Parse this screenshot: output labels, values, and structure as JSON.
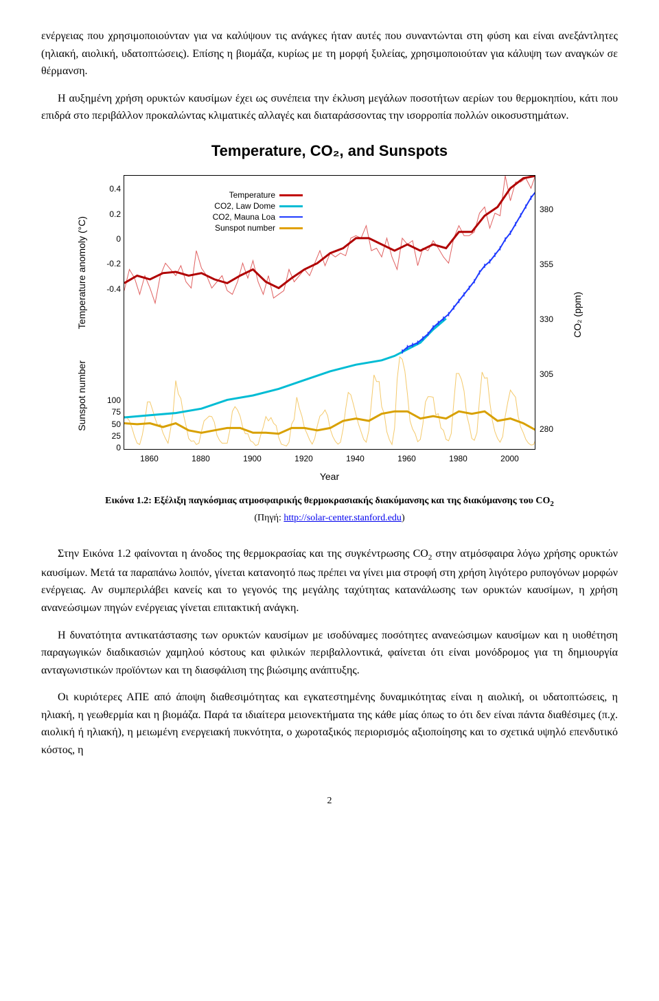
{
  "paragraphs": {
    "p1": "ενέργειας που χρησιμοποιούνταν για να καλύψουν τις ανάγκες ήταν αυτές που συναντώνται στη φύση και είναι ανεξάντλητες (ηλιακή, αιολική, υδατοπτώσεις). Επίσης η βιομάζα, κυρίως με τη μορφή ξυλείας, χρησιμοποιούταν για κάλυψη των αναγκών σε θέρμανση.",
    "p2": "Η αυξημένη χρήση ορυκτών καυσίμων έχει ως συνέπεια την έκλυση μεγάλων ποσοτήτων αερίων του θερμοκηπίου, κάτι που επιδρά στο περιβάλλον προκαλώντας κλιματικές αλλαγές και διαταράσσοντας την ισορροπία πολλών οικοσυστημάτων.",
    "p3a": "Στην Εικόνα 1.2 φαίνονται η άνοδος της θερμοκρασίας και της συγκέντρωσης CO",
    "p3b": " στην ατμόσφαιρα λόγω χρήσης ορυκτών καυσίμων. Μετά τα παραπάνω λοιπόν, γίνεται κατανοητό πως πρέπει να γίνει μια στροφή στη χρήση λιγότερο ρυπογόνων μορφών ενέργειας. Αν συμπεριλάβει κανείς και το γεγονός της μεγάλης ταχύτητας κατανάλωσης των ορυκτών καυσίμων, η χρήση ανανεώσιμων πηγών ενέργειας γίνεται επιτακτική ανάγκη.",
    "p4": "Η δυνατότητα αντικατάστασης των ορυκτών καυσίμων με ισοδύναμες ποσότητες ανανεώσιμων καυσίμων και η υιοθέτηση παραγωγικών διαδικασιών χαμηλού κόστους και φιλικών περιβαλλοντικά, φαίνεται ότι είναι μονόδρομος για τη δημιουργία ανταγωνιστικών προϊόντων και τη διασφάλιση της βιώσιμης ανάπτυξης.",
    "p5": "Οι κυριότερες ΑΠΕ από άποψη διαθεσιμότητας και εγκατεστημένης δυναμικότητας είναι η αιολική, οι υδατοπτώσεις, η ηλιακή, η γεωθερμία και η βιομάζα. Παρά τα ιδιαίτερα μειονεκτήματα της κάθε μίας όπως το ότι δεν είναι πάντα διαθέσιμες (π.χ. αιολική ή ηλιακή), η μειωμένη ενεργειακή πυκνότητα, ο χωροταξικός περιορισμός αξιοποίησης και το σχετικά υψηλό επενδυτικό κόστος, η"
  },
  "chart": {
    "title": "Temperature, CO₂, and Sunspots",
    "xlabel": "Year",
    "ylabels": {
      "left_top": "Temperature anomoly (°C)",
      "left_bot": "Sunspot number",
      "right": "CO₂ (ppm)"
    },
    "x_ticks": [
      1860,
      1880,
      1900,
      1920,
      1940,
      1960,
      1980,
      2000
    ],
    "x_range": [
      1850,
      2010
    ],
    "temp_axis": {
      "ticks": [
        -0.4,
        -0.2,
        0,
        0.2,
        0.4
      ],
      "range": [
        -0.6,
        0.5
      ]
    },
    "sunspot_axis": {
      "ticks": [
        0,
        25,
        50,
        75,
        100
      ],
      "range": [
        0,
        210
      ]
    },
    "co2_axis": {
      "ticks": [
        280,
        305,
        330,
        355,
        380
      ],
      "range": [
        270,
        395
      ]
    },
    "legend": [
      {
        "label": "Temperature",
        "color": "#c00000",
        "width": 3
      },
      {
        "label": "CO2, Law Dome",
        "color": "#00bcd4",
        "width": 3
      },
      {
        "label": "CO2, Mauna Loa",
        "color": "#1e3aff",
        "width": 2
      },
      {
        "label": "Sunspot number",
        "color": "#e0a000",
        "width": 3
      }
    ],
    "colors": {
      "temperature_thin": "#e06060",
      "temperature_thick": "#b00000",
      "co2_lawdome": "#00bcd4",
      "co2_maunaloa": "#1e3aff",
      "sunspot_thin": "#f4c96b",
      "sunspot_thick": "#d8a000",
      "frame": "#000000",
      "background": "#ffffff"
    },
    "line_widths": {
      "thin": 1,
      "thick": 3,
      "co2": 3,
      "mauna": 2
    },
    "title_fontsize": 22,
    "tick_fontsize": 12,
    "label_fontsize": 14,
    "temperature_smooth": [
      [
        1850,
        -0.36
      ],
      [
        1855,
        -0.3
      ],
      [
        1860,
        -0.33
      ],
      [
        1865,
        -0.28
      ],
      [
        1870,
        -0.27
      ],
      [
        1875,
        -0.3
      ],
      [
        1880,
        -0.28
      ],
      [
        1885,
        -0.33
      ],
      [
        1890,
        -0.36
      ],
      [
        1895,
        -0.3
      ],
      [
        1900,
        -0.25
      ],
      [
        1905,
        -0.35
      ],
      [
        1910,
        -0.4
      ],
      [
        1915,
        -0.32
      ],
      [
        1920,
        -0.25
      ],
      [
        1925,
        -0.2
      ],
      [
        1930,
        -0.12
      ],
      [
        1935,
        -0.08
      ],
      [
        1940,
        0.0
      ],
      [
        1945,
        0.0
      ],
      [
        1950,
        -0.05
      ],
      [
        1955,
        -0.1
      ],
      [
        1960,
        -0.05
      ],
      [
        1965,
        -0.1
      ],
      [
        1970,
        -0.05
      ],
      [
        1975,
        -0.08
      ],
      [
        1980,
        0.05
      ],
      [
        1985,
        0.05
      ],
      [
        1990,
        0.18
      ],
      [
        1995,
        0.25
      ],
      [
        2000,
        0.4
      ],
      [
        2005,
        0.48
      ],
      [
        2010,
        0.5
      ]
    ],
    "temperature_raw": [
      [
        1850,
        -0.42
      ],
      [
        1852,
        -0.25
      ],
      [
        1854,
        -0.32
      ],
      [
        1856,
        -0.45
      ],
      [
        1858,
        -0.3
      ],
      [
        1860,
        -0.4
      ],
      [
        1862,
        -0.52
      ],
      [
        1864,
        -0.3
      ],
      [
        1866,
        -0.2
      ],
      [
        1868,
        -0.25
      ],
      [
        1870,
        -0.3
      ],
      [
        1872,
        -0.22
      ],
      [
        1874,
        -0.35
      ],
      [
        1876,
        -0.4
      ],
      [
        1878,
        -0.1
      ],
      [
        1880,
        -0.24
      ],
      [
        1882,
        -0.3
      ],
      [
        1884,
        -0.4
      ],
      [
        1886,
        -0.35
      ],
      [
        1888,
        -0.3
      ],
      [
        1890,
        -0.42
      ],
      [
        1892,
        -0.45
      ],
      [
        1894,
        -0.35
      ],
      [
        1896,
        -0.2
      ],
      [
        1898,
        -0.32
      ],
      [
        1900,
        -0.18
      ],
      [
        1902,
        -0.35
      ],
      [
        1904,
        -0.45
      ],
      [
        1906,
        -0.3
      ],
      [
        1908,
        -0.48
      ],
      [
        1910,
        -0.45
      ],
      [
        1912,
        -0.42
      ],
      [
        1914,
        -0.25
      ],
      [
        1916,
        -0.35
      ],
      [
        1918,
        -0.3
      ],
      [
        1920,
        -0.25
      ],
      [
        1922,
        -0.3
      ],
      [
        1924,
        -0.2
      ],
      [
        1926,
        -0.1
      ],
      [
        1928,
        -0.22
      ],
      [
        1930,
        -0.12
      ],
      [
        1932,
        -0.15
      ],
      [
        1934,
        -0.12
      ],
      [
        1936,
        -0.14
      ],
      [
        1938,
        0.0
      ],
      [
        1940,
        0.02
      ],
      [
        1942,
        0.0
      ],
      [
        1944,
        0.1
      ],
      [
        1946,
        -0.1
      ],
      [
        1948,
        -0.08
      ],
      [
        1950,
        -0.15
      ],
      [
        1952,
        0.0
      ],
      [
        1954,
        -0.15
      ],
      [
        1956,
        -0.25
      ],
      [
        1958,
        0.0
      ],
      [
        1960,
        -0.05
      ],
      [
        1962,
        -0.02
      ],
      [
        1964,
        -0.22
      ],
      [
        1966,
        -0.08
      ],
      [
        1968,
        -0.1
      ],
      [
        1970,
        -0.02
      ],
      [
        1972,
        -0.08
      ],
      [
        1974,
        -0.15
      ],
      [
        1976,
        -0.2
      ],
      [
        1978,
        0.0
      ],
      [
        1980,
        0.1
      ],
      [
        1982,
        0.02
      ],
      [
        1984,
        0.02
      ],
      [
        1986,
        0.05
      ],
      [
        1988,
        0.2
      ],
      [
        1990,
        0.25
      ],
      [
        1992,
        0.08
      ],
      [
        1994,
        0.2
      ],
      [
        1996,
        0.18
      ],
      [
        1998,
        0.5
      ],
      [
        2000,
        0.3
      ],
      [
        2002,
        0.45
      ],
      [
        2004,
        0.45
      ],
      [
        2006,
        0.48
      ],
      [
        2008,
        0.4
      ],
      [
        2010,
        0.52
      ]
    ],
    "co2_lawdome": [
      [
        1850,
        285
      ],
      [
        1860,
        286
      ],
      [
        1870,
        287
      ],
      [
        1880,
        289
      ],
      [
        1890,
        293
      ],
      [
        1900,
        295
      ],
      [
        1910,
        298
      ],
      [
        1920,
        302
      ],
      [
        1930,
        306
      ],
      [
        1940,
        309
      ],
      [
        1950,
        311
      ],
      [
        1955,
        313
      ],
      [
        1960,
        316
      ],
      [
        1965,
        319
      ],
      [
        1970,
        325
      ],
      [
        1975,
        330
      ]
    ],
    "co2_maunaloa": [
      [
        1958,
        315
      ],
      [
        1960,
        317
      ],
      [
        1962,
        318
      ],
      [
        1964,
        319
      ],
      [
        1966,
        321
      ],
      [
        1968,
        323
      ],
      [
        1970,
        326
      ],
      [
        1972,
        328
      ],
      [
        1974,
        330
      ],
      [
        1976,
        332
      ],
      [
        1978,
        335
      ],
      [
        1980,
        338
      ],
      [
        1982,
        341
      ],
      [
        1984,
        344
      ],
      [
        1986,
        347
      ],
      [
        1988,
        351
      ],
      [
        1990,
        354
      ],
      [
        1992,
        356
      ],
      [
        1994,
        359
      ],
      [
        1996,
        362
      ],
      [
        1998,
        366
      ],
      [
        2000,
        369
      ],
      [
        2002,
        373
      ],
      [
        2004,
        377
      ],
      [
        2006,
        381
      ],
      [
        2008,
        385
      ],
      [
        2010,
        388
      ]
    ],
    "sunspot_smooth": [
      [
        1850,
        50
      ],
      [
        1855,
        48
      ],
      [
        1860,
        50
      ],
      [
        1865,
        42
      ],
      [
        1870,
        50
      ],
      [
        1875,
        35
      ],
      [
        1880,
        30
      ],
      [
        1885,
        35
      ],
      [
        1890,
        40
      ],
      [
        1895,
        40
      ],
      [
        1900,
        30
      ],
      [
        1905,
        30
      ],
      [
        1910,
        28
      ],
      [
        1915,
        40
      ],
      [
        1920,
        40
      ],
      [
        1925,
        35
      ],
      [
        1930,
        40
      ],
      [
        1935,
        55
      ],
      [
        1940,
        60
      ],
      [
        1945,
        55
      ],
      [
        1950,
        70
      ],
      [
        1955,
        75
      ],
      [
        1960,
        75
      ],
      [
        1965,
        60
      ],
      [
        1970,
        65
      ],
      [
        1975,
        60
      ],
      [
        1980,
        75
      ],
      [
        1985,
        70
      ],
      [
        1990,
        75
      ],
      [
        1995,
        55
      ],
      [
        2000,
        60
      ],
      [
        2005,
        50
      ],
      [
        2010,
        35
      ]
    ],
    "sunspot_raw": [
      [
        1850,
        65
      ],
      [
        1851,
        62
      ],
      [
        1852,
        55
      ],
      [
        1853,
        40
      ],
      [
        1854,
        22
      ],
      [
        1855,
        8
      ],
      [
        1856,
        5
      ],
      [
        1857,
        25
      ],
      [
        1858,
        55
      ],
      [
        1859,
        95
      ],
      [
        1860,
        95
      ],
      [
        1861,
        78
      ],
      [
        1862,
        60
      ],
      [
        1863,
        45
      ],
      [
        1864,
        48
      ],
      [
        1865,
        30
      ],
      [
        1866,
        18
      ],
      [
        1867,
        8
      ],
      [
        1868,
        38
      ],
      [
        1869,
        75
      ],
      [
        1870,
        140
      ],
      [
        1871,
        112
      ],
      [
        1872,
        102
      ],
      [
        1873,
        68
      ],
      [
        1874,
        45
      ],
      [
        1875,
        18
      ],
      [
        1876,
        12
      ],
      [
        1877,
        13
      ],
      [
        1878,
        5
      ],
      [
        1879,
        8
      ],
      [
        1880,
        33
      ],
      [
        1881,
        55
      ],
      [
        1882,
        60
      ],
      [
        1883,
        65
      ],
      [
        1884,
        64
      ],
      [
        1885,
        52
      ],
      [
        1886,
        25
      ],
      [
        1887,
        14
      ],
      [
        1888,
        8
      ],
      [
        1889,
        8
      ],
      [
        1890,
        8
      ],
      [
        1891,
        35
      ],
      [
        1892,
        75
      ],
      [
        1893,
        85
      ],
      [
        1894,
        78
      ],
      [
        1895,
        65
      ],
      [
        1896,
        42
      ],
      [
        1897,
        28
      ],
      [
        1898,
        28
      ],
      [
        1899,
        13
      ],
      [
        1900,
        10
      ],
      [
        1901,
        3
      ],
      [
        1902,
        5
      ],
      [
        1903,
        25
      ],
      [
        1904,
        42
      ],
      [
        1905,
        64
      ],
      [
        1906,
        55
      ],
      [
        1907,
        62
      ],
      [
        1908,
        50
      ],
      [
        1909,
        45
      ],
      [
        1910,
        20
      ],
      [
        1911,
        6
      ],
      [
        1912,
        4
      ],
      [
        1913,
        2
      ],
      [
        1914,
        10
      ],
      [
        1915,
        48
      ],
      [
        1916,
        58
      ],
      [
        1917,
        105
      ],
      [
        1918,
        82
      ],
      [
        1919,
        65
      ],
      [
        1920,
        40
      ],
      [
        1921,
        28
      ],
      [
        1922,
        15
      ],
      [
        1923,
        6
      ],
      [
        1924,
        18
      ],
      [
        1925,
        45
      ],
      [
        1926,
        65
      ],
      [
        1927,
        70
      ],
      [
        1928,
        78
      ],
      [
        1929,
        66
      ],
      [
        1930,
        38
      ],
      [
        1931,
        22
      ],
      [
        1932,
        12
      ],
      [
        1933,
        6
      ],
      [
        1934,
        10
      ],
      [
        1935,
        38
      ],
      [
        1936,
        80
      ],
      [
        1937,
        115
      ],
      [
        1938,
        110
      ],
      [
        1939,
        90
      ],
      [
        1940,
        68
      ],
      [
        1941,
        48
      ],
      [
        1942,
        32
      ],
      [
        1943,
        16
      ],
      [
        1944,
        10
      ],
      [
        1945,
        35
      ],
      [
        1946,
        93
      ],
      [
        1947,
        152
      ],
      [
        1948,
        138
      ],
      [
        1949,
        138
      ],
      [
        1950,
        85
      ],
      [
        1951,
        70
      ],
      [
        1952,
        32
      ],
      [
        1953,
        15
      ],
      [
        1954,
        5
      ],
      [
        1955,
        40
      ],
      [
        1956,
        142
      ],
      [
        1957,
        190
      ],
      [
        1958,
        185
      ],
      [
        1959,
        160
      ],
      [
        1960,
        112
      ],
      [
        1961,
        55
      ],
      [
        1962,
        38
      ],
      [
        1963,
        28
      ],
      [
        1964,
        11
      ],
      [
        1965,
        16
      ],
      [
        1966,
        48
      ],
      [
        1967,
        95
      ],
      [
        1968,
        106
      ],
      [
        1969,
        106
      ],
      [
        1970,
        105
      ],
      [
        1971,
        68
      ],
      [
        1972,
        70
      ],
      [
        1973,
        40
      ],
      [
        1974,
        35
      ],
      [
        1975,
        16
      ],
      [
        1976,
        13
      ],
      [
        1977,
        28
      ],
      [
        1978,
        93
      ],
      [
        1979,
        155
      ],
      [
        1980,
        155
      ],
      [
        1981,
        142
      ],
      [
        1982,
        118
      ],
      [
        1983,
        68
      ],
      [
        1984,
        46
      ],
      [
        1985,
        18
      ],
      [
        1986,
        14
      ],
      [
        1987,
        30
      ],
      [
        1988,
        100
      ],
      [
        1989,
        158
      ],
      [
        1990,
        145
      ],
      [
        1991,
        146
      ],
      [
        1992,
        95
      ],
      [
        1993,
        55
      ],
      [
        1994,
        32
      ],
      [
        1995,
        18
      ],
      [
        1996,
        10
      ],
      [
        1997,
        22
      ],
      [
        1998,
        65
      ],
      [
        1999,
        95
      ],
      [
        2000,
        120
      ],
      [
        2001,
        112
      ],
      [
        2002,
        105
      ],
      [
        2003,
        65
      ],
      [
        2004,
        42
      ],
      [
        2005,
        30
      ],
      [
        2006,
        16
      ],
      [
        2007,
        8
      ],
      [
        2008,
        4
      ],
      [
        2009,
        5
      ],
      [
        2010,
        18
      ]
    ]
  },
  "caption": {
    "label": "Εικόνα 1.2:",
    "text1": " Εξέλιξη παγκόσμιας ατμοσφαιρικής θερμοκρασιακής διακύμανσης και της διακύμανσης του CO",
    "sub": "2",
    "source_prefix": "(Πηγή: ",
    "link_text": "http://solar-center.stanford.edu",
    "source_suffix": ")"
  },
  "page_number": "2"
}
